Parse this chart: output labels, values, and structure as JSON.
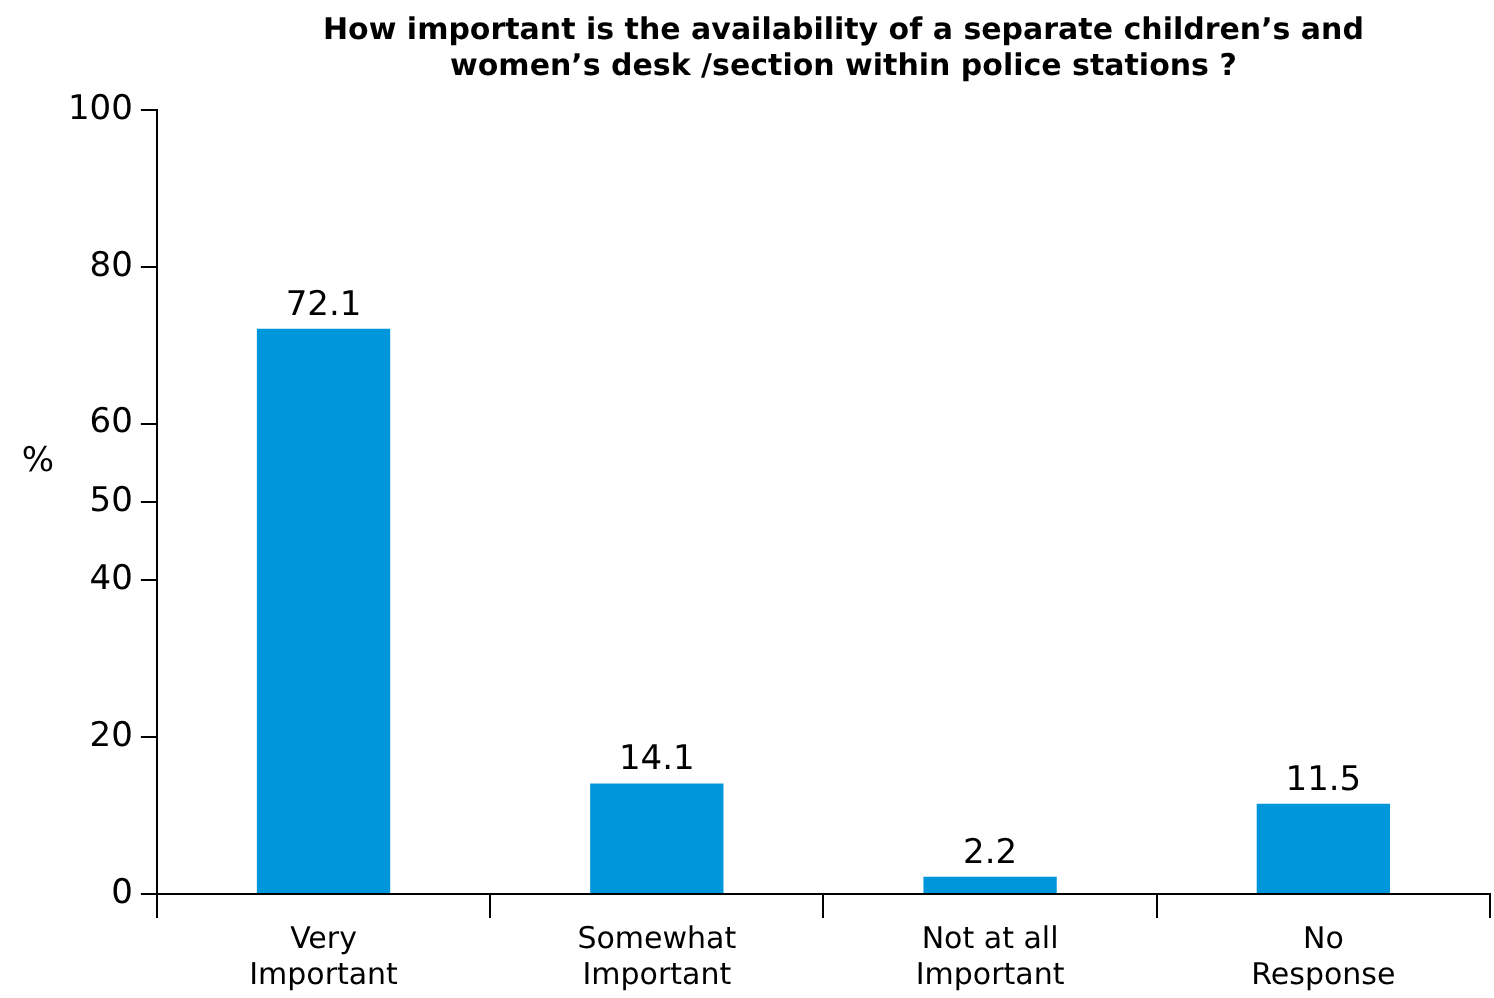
{
  "chart_data": {
    "type": "bar",
    "title": "How important is the availability of a separate children’s and women’s desk /section within police stations ?",
    "ylabel": "%",
    "categories": [
      "Very Important",
      "Somewhat Important",
      "Not at all Important",
      "No Response"
    ],
    "values": [
      72.1,
      14.1,
      2.2,
      11.5
    ],
    "color": "#0096dc",
    "ylim": [
      0,
      100
    ],
    "yticks": [
      0,
      20,
      40,
      50,
      60,
      80,
      100
    ],
    "grid": false,
    "legend": false,
    "data_labels": true
  }
}
